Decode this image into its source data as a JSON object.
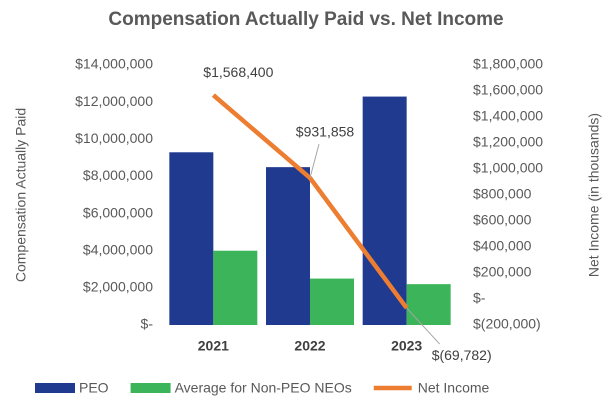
{
  "chart_data": {
    "type": "bar-line",
    "title": "Compensation Actually Paid vs. Net Income",
    "y_label": "Compensation Actually Paid",
    "y2_label": "Net Income (in thousands)",
    "categories": [
      "2021",
      "2022",
      "2023"
    ],
    "series": [
      {
        "name": "PEO",
        "color": "#203a8f",
        "type": "bar",
        "values": [
          9300000,
          8500000,
          12300000
        ]
      },
      {
        "name": "Average for Non-PEO NEOs",
        "color": "#3cb55a",
        "type": "bar",
        "values": [
          4000000,
          2500000,
          2200000
        ]
      },
      {
        "name": "Net Income",
        "color": "#ed7d31",
        "type": "line",
        "axis": "y2",
        "values": [
          1568400,
          931858,
          -69782
        ],
        "value_labels": [
          "$1,568,400",
          "$931,858",
          "$(69,782)"
        ]
      }
    ],
    "ylim": [
      0,
      14000000
    ],
    "yticks": [
      {
        "value": 0,
        "label": "$-"
      },
      {
        "value": 2000000,
        "label": "$2,000,000"
      },
      {
        "value": 4000000,
        "label": "$4,000,000"
      },
      {
        "value": 6000000,
        "label": "$6,000,000"
      },
      {
        "value": 8000000,
        "label": "$8,000,000"
      },
      {
        "value": 10000000,
        "label": "$10,000,000"
      },
      {
        "value": 12000000,
        "label": "$12,000,000"
      },
      {
        "value": 14000000,
        "label": "$14,000,000"
      }
    ],
    "y2lim": [
      -200000,
      1800000
    ],
    "y2ticks": [
      {
        "value": -200000,
        "label": "$(200,000)"
      },
      {
        "value": 0,
        "label": "$-"
      },
      {
        "value": 200000,
        "label": "$200,000"
      },
      {
        "value": 400000,
        "label": "$400,000"
      },
      {
        "value": 600000,
        "label": "$600,000"
      },
      {
        "value": 800000,
        "label": "$800,000"
      },
      {
        "value": 1000000,
        "label": "$1,000,000"
      },
      {
        "value": 1200000,
        "label": "$1,200,000"
      },
      {
        "value": 1400000,
        "label": "$1,400,000"
      },
      {
        "value": 1600000,
        "label": "$1,600,000"
      },
      {
        "value": 1800000,
        "label": "$1,800,000"
      }
    ]
  }
}
